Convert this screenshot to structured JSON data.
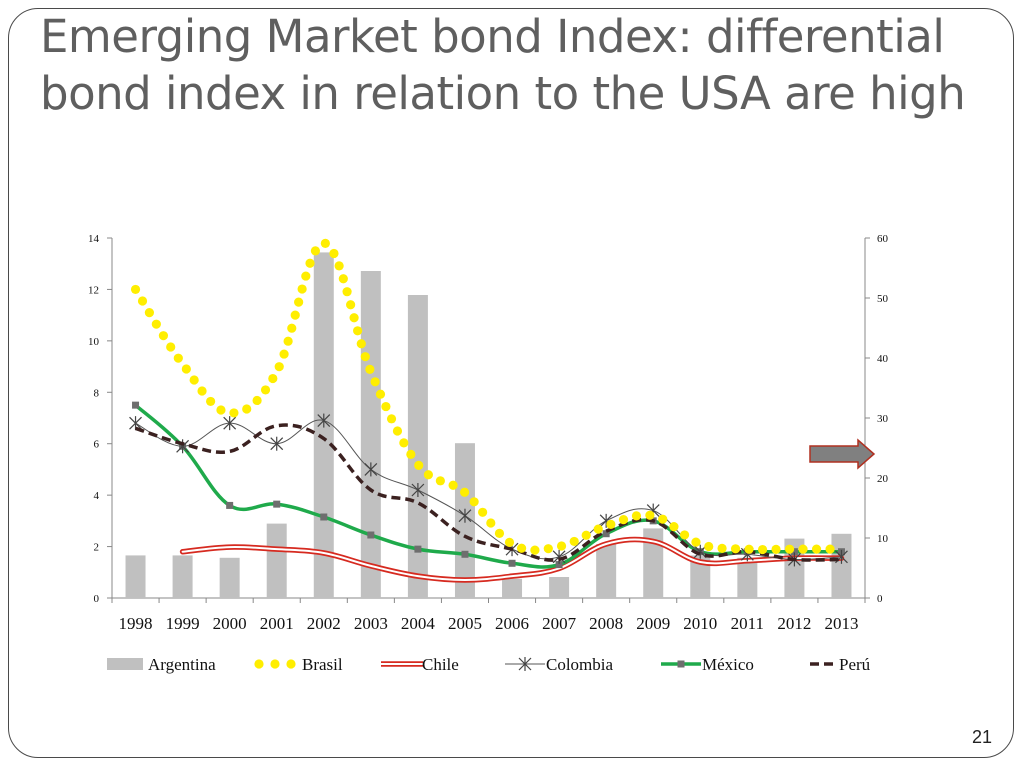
{
  "slide": {
    "title": "Emerging Market bond Index: differential bond index in relation to the USA are high",
    "number": "21"
  },
  "colors": {
    "Argentina": "#c0c0c0",
    "Brasil": "#ffee00",
    "Chile": "#d62a20",
    "Colombia": "#555555",
    "México": "#1faa4b",
    "Perú": "#3b2120",
    "arrow_fill": "#808080",
    "arrow_stroke": "#b03020"
  },
  "chart_data": {
    "type": "bar",
    "title": "",
    "categories": [
      "1998",
      "1999",
      "2000",
      "2001",
      "2002",
      "2003",
      "2004",
      "2005",
      "2006",
      "2007",
      "2008",
      "2009",
      "2010",
      "2011",
      "2012",
      "2013"
    ],
    "y_left": {
      "ylim": [
        0,
        14
      ],
      "ticks": [
        0,
        2,
        4,
        6,
        8,
        10,
        12,
        14
      ]
    },
    "y_right": {
      "ylim": [
        0,
        60
      ],
      "ticks": [
        0,
        10,
        20,
        30,
        40,
        50,
        60
      ]
    },
    "grid": false,
    "legend": "bottom",
    "annotation": "arrow pointing to right axis near 24",
    "series": [
      {
        "name": "Argentina",
        "type": "bar",
        "axis": "right",
        "values": [
          7.1,
          7.1,
          6.7,
          12.4,
          57.6,
          54.5,
          50.5,
          25.8,
          3.2,
          3.5,
          9.0,
          11.6,
          7.1,
          6.7,
          9.9,
          10.7
        ]
      },
      {
        "name": "Brasil",
        "type": "line",
        "axis": "left",
        "style": "dotted",
        "values": [
          12.0,
          9.1,
          7.2,
          8.8,
          13.8,
          8.8,
          5.2,
          4.1,
          2.1,
          2.0,
          2.8,
          3.2,
          2.1,
          1.9,
          1.9,
          1.9
        ]
      },
      {
        "name": "Chile",
        "type": "line",
        "axis": "left",
        "style": "double",
        "values": [
          null,
          1.8,
          1.98,
          1.9,
          1.75,
          1.25,
          0.85,
          0.7,
          0.85,
          1.15,
          2.1,
          2.2,
          1.4,
          1.45,
          1.55,
          1.55
        ]
      },
      {
        "name": "Colombia",
        "type": "line",
        "axis": "left",
        "style": "star",
        "values": [
          6.8,
          5.9,
          6.8,
          6.0,
          6.9,
          5.0,
          4.2,
          3.2,
          1.9,
          1.6,
          3.0,
          3.4,
          1.8,
          1.7,
          1.5,
          1.6
        ]
      },
      {
        "name": "México",
        "type": "line",
        "axis": "left",
        "style": "square",
        "values": [
          7.5,
          5.9,
          3.6,
          3.65,
          3.15,
          2.45,
          1.9,
          1.7,
          1.35,
          1.3,
          2.5,
          3.0,
          1.8,
          1.8,
          1.8,
          1.8
        ]
      },
      {
        "name": "Perú",
        "type": "line",
        "axis": "left",
        "style": "dashed",
        "values": [
          6.6,
          6.0,
          5.7,
          6.7,
          6.2,
          4.2,
          3.7,
          2.4,
          1.9,
          1.5,
          2.6,
          3.0,
          1.7,
          1.8,
          1.5,
          1.5
        ]
      }
    ]
  }
}
